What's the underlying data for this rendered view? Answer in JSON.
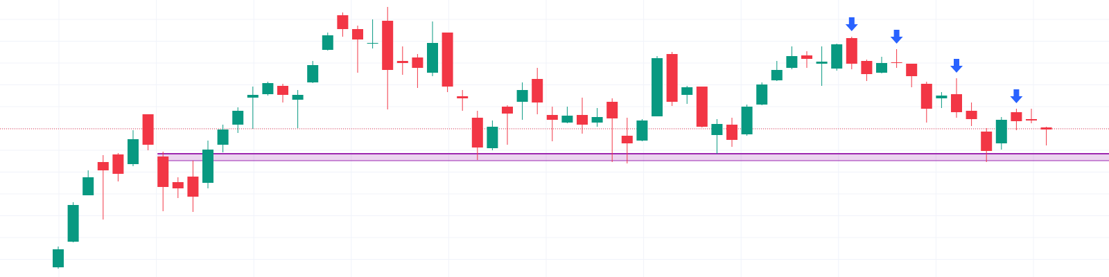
{
  "chart_data": {
    "type": "candlestick",
    "ylim": [
      0,
      400
    ],
    "up_color": "#089981",
    "down_color": "#f23645",
    "open": [
      14,
      51,
      118,
      166,
      177,
      163,
      235,
      174,
      137,
      145,
      136,
      191,
      220,
      259,
      264,
      276,
      256,
      281,
      328,
      378,
      358,
      337,
      370,
      312,
      317,
      295,
      353,
      261,
      230,
      186,
      246,
      253,
      286,
      234,
      223,
      234,
      223,
      253,
      204,
      197,
      232,
      322,
      263,
      275,
      205,
      220,
      206,
      249,
      284,
      302,
      320,
      308,
      301,
      345,
      312,
      295,
      310,
      308,
      279,
      258,
      264,
      240,
      210,
      193,
      238,
      228,
      216
    ],
    "high": [
      44,
      108,
      154,
      176,
      179,
      212,
      235,
      181,
      144,
      168,
      197,
      220,
      245,
      275,
      282,
      279,
      270,
      312,
      353,
      382,
      363,
      372,
      390,
      333,
      322,
      369,
      353,
      270,
      240,
      226,
      248,
      281,
      302,
      246,
      246,
      259,
      244,
      258,
      230,
      228,
      319,
      325,
      276,
      275,
      228,
      230,
      249,
      281,
      312,
      333,
      326,
      333,
      337,
      347,
      314,
      318,
      329,
      308,
      282,
      267,
      287,
      252,
      215,
      231,
      243,
      243,
      217
    ],
    "low": [
      12,
      50,
      118,
      83,
      138,
      160,
      183,
      95,
      114,
      94,
      128,
      180,
      208,
      214,
      262,
      252,
      215,
      280,
      327,
      347,
      295,
      330,
      242,
      292,
      273,
      290,
      267,
      240,
      169,
      183,
      191,
      227,
      235,
      196,
      222,
      207,
      217,
      166,
      164,
      196,
      232,
      247,
      250,
      216,
      178,
      188,
      204,
      248,
      283,
      300,
      302,
      276,
      298,
      300,
      283,
      294,
      302,
      274,
      223,
      244,
      230,
      218,
      166,
      184,
      212,
      222,
      190
    ],
    "close": [
      40,
      104,
      144,
      154,
      149,
      199,
      191,
      130,
      128,
      116,
      184,
      213,
      240,
      263,
      280,
      263,
      263,
      306,
      349,
      358,
      343,
      338,
      299,
      309,
      302,
      338,
      275,
      258,
      187,
      217,
      236,
      270,
      252,
      227,
      233,
      220,
      231,
      229,
      193,
      226,
      316,
      253,
      274,
      217,
      221,
      198,
      246,
      278,
      299,
      319,
      315,
      311,
      336,
      308,
      293,
      309,
      309,
      290,
      243,
      262,
      238,
      228,
      182,
      227,
      225,
      226,
      213
    ],
    "price_line": 214,
    "price_line_color": "#f23645",
    "zone": {
      "low": 168,
      "high": 178,
      "color": "#9c27b0"
    },
    "arrow_candles": [
      53,
      56,
      60,
      64
    ],
    "arrow_color": "#2962ff"
  }
}
